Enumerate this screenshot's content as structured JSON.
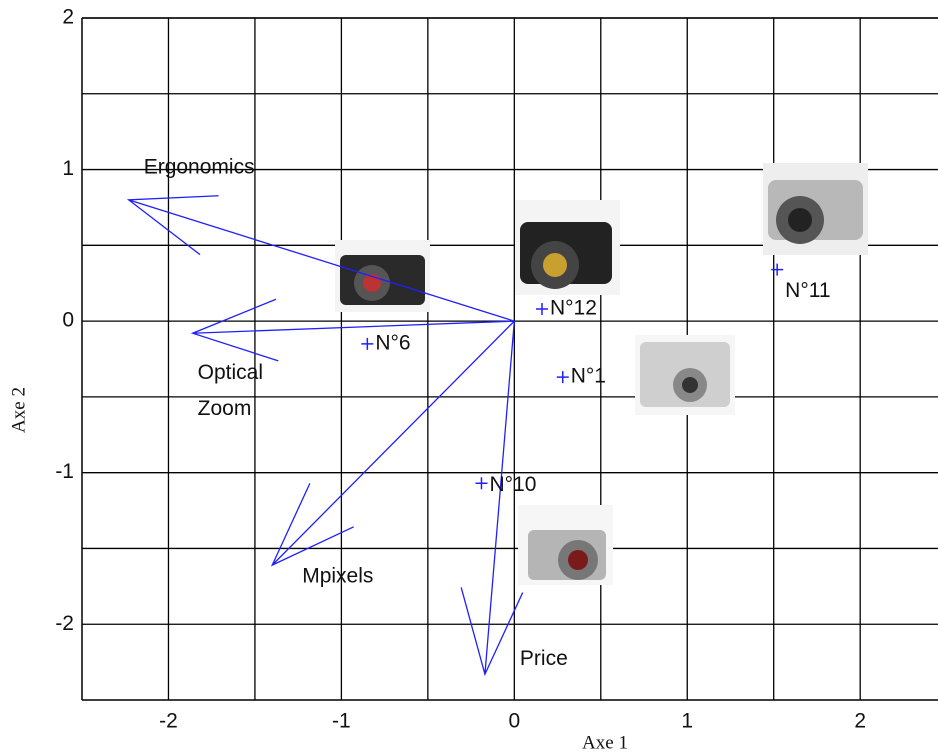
{
  "chart_data": {
    "type": "biplot",
    "xlabel": "Axe 1",
    "ylabel": "Axe 2",
    "xlim": [
      -2.5,
      2.45
    ],
    "ylim": [
      -2.5,
      2
    ],
    "xticks": [
      -2,
      -1,
      0,
      1,
      2
    ],
    "yticks": [
      -2,
      -1,
      0,
      1,
      2
    ],
    "xminorticks": [
      -1.5,
      -0.5,
      0.5,
      1.5
    ],
    "yminorticks": [
      -1.5,
      -0.5,
      0.5,
      1.5
    ],
    "grid": true,
    "points": {
      "labels": [
        "N°12",
        "N°1",
        "N°11",
        "N°6",
        "N°10"
      ],
      "x": [
        0.16,
        0.28,
        1.52,
        -0.85,
        -0.19
      ],
      "y": [
        0.08,
        -0.37,
        0.34,
        -0.15,
        -1.07
      ],
      "color": "#2020ff"
    },
    "variables": {
      "names": [
        "Ergonomics",
        "Optical Zoom",
        "Mpixels",
        "Price"
      ],
      "x": [
        -2.23,
        -1.86,
        -1.4,
        -0.17
      ],
      "y": [
        0.8,
        -0.08,
        -1.61,
        -2.33
      ],
      "color": "#2020ff"
    }
  }
}
